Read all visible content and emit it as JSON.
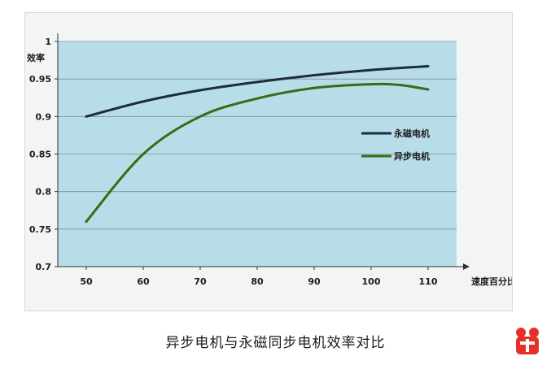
{
  "caption": "异步电机与永磁同步电机效率对比",
  "chart_data": {
    "type": "line",
    "ylabel": "效率",
    "xlabel": "速度百分比",
    "xlim": [
      45,
      115
    ],
    "ylim": [
      0.7,
      1.0
    ],
    "x_ticks": [
      50,
      60,
      70,
      80,
      90,
      100,
      110
    ],
    "y_ticks": [
      0.7,
      0.75,
      0.8,
      0.85,
      0.9,
      0.95,
      1
    ],
    "y_tick_labels": [
      "0.7",
      "0.75",
      "0.8",
      "0.85",
      "0.9",
      "0.95",
      "1"
    ],
    "grid": "horizontal",
    "legend_position": "right",
    "plot_background": "#b7dde9",
    "series": [
      {
        "name": "永磁电机",
        "color": "#1f2a44",
        "x": [
          50,
          60,
          70,
          80,
          90,
          100,
          110
        ],
        "values": [
          0.9,
          0.92,
          0.935,
          0.946,
          0.955,
          0.962,
          0.967
        ]
      },
      {
        "name": "异步电机",
        "color": "#3b6a14",
        "x": [
          50,
          60,
          70,
          80,
          90,
          100,
          105,
          110
        ],
        "values": [
          0.76,
          0.85,
          0.9,
          0.924,
          0.938,
          0.943,
          0.942,
          0.936
        ]
      }
    ]
  },
  "logo": {
    "color": "#e8302a",
    "icon": "brand-logo-icon"
  }
}
